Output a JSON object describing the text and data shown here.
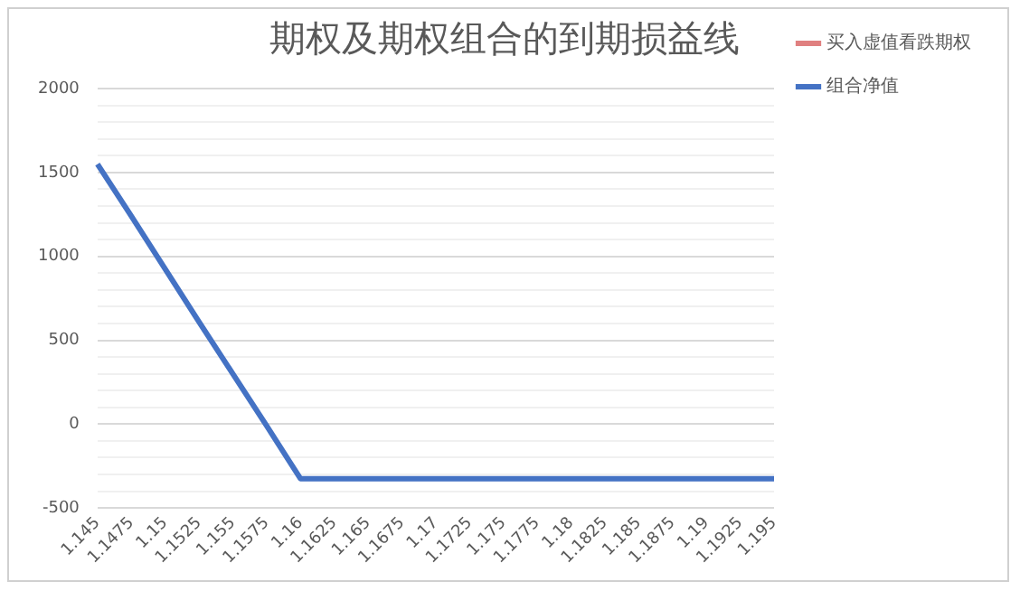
{
  "chart_data": {
    "type": "line",
    "title": "期权及期权组合的到期损益线",
    "categories": [
      "1.145",
      "1.1475",
      "1.15",
      "1.1525",
      "1.155",
      "1.1575",
      "1.16",
      "1.1625",
      "1.165",
      "1.1675",
      "1.17",
      "1.1725",
      "1.175",
      "1.1775",
      "1.18",
      "1.1825",
      "1.185",
      "1.1875",
      "1.19",
      "1.1925",
      "1.195"
    ],
    "series": [
      {
        "name": "买入虚值看跌期权",
        "color": "#e08080",
        "values": [
          null,
          null,
          null,
          null,
          null,
          null,
          null,
          null,
          null,
          null,
          null,
          null,
          null,
          null,
          null,
          null,
          null,
          null,
          null,
          null,
          null
        ]
      },
      {
        "name": "组合净值",
        "color": "#4472c4",
        "values": [
          1550,
          1240,
          925,
          610,
          300,
          -10,
          -325,
          -325,
          -325,
          -325,
          -325,
          -325,
          -325,
          -325,
          -325,
          -325,
          -325,
          -325,
          -325,
          -325,
          -325
        ]
      }
    ],
    "ylim": [
      -500,
      2000
    ],
    "yticks": [
      -500,
      {
        "value": -400,
        "label": null
      },
      {
        "value": -300,
        "label": null
      },
      {
        "value": -200,
        "label": null
      },
      {
        "value": -100,
        "label": null
      },
      0,
      {
        "value": 100,
        "label": null
      },
      {
        "value": 200,
        "label": null
      },
      {
        "value": 300,
        "label": null
      },
      {
        "value": 400,
        "label": null
      },
      500,
      {
        "value": 600,
        "label": null
      },
      {
        "value": 700,
        "label": null
      },
      {
        "value": 800,
        "label": null
      },
      {
        "value": 900,
        "label": null
      },
      1000,
      {
        "value": 1100,
        "label": null
      },
      {
        "value": 1200,
        "label": null
      },
      {
        "value": 1300,
        "label": null
      },
      {
        "value": 1400,
        "label": null
      },
      1500,
      {
        "value": 1600,
        "label": null
      },
      {
        "value": 1700,
        "label": null
      },
      {
        "value": 1800,
        "label": null
      },
      {
        "value": 1900,
        "label": null
      },
      2000
    ],
    "grid": "y",
    "legend": "right",
    "marker": "none",
    "line_style": "solid"
  }
}
